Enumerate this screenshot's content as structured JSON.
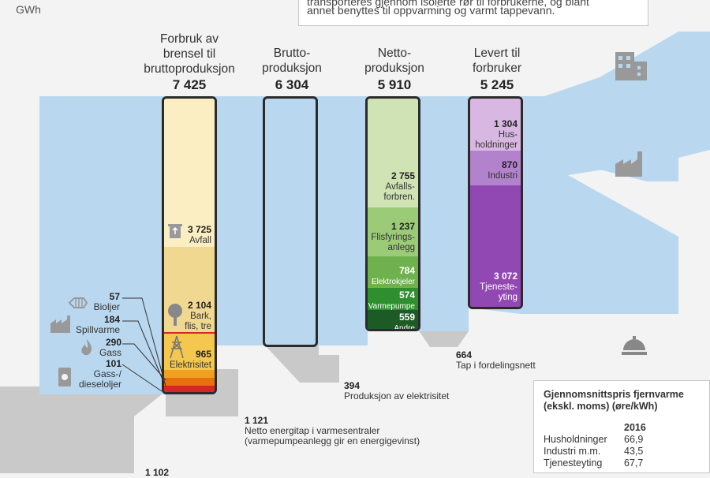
{
  "unit": "GWh",
  "note": {
    "line1": "transporteres gjennom isolerte rør til forbrukerne, og blant",
    "line2": "annet benyttes til oppvarming og varmt tappevann."
  },
  "stages": [
    {
      "header": [
        "Forbruk av",
        "brensel til",
        "bruttoproduksjon"
      ],
      "total": "7 425"
    },
    {
      "header": [
        "Brutto-",
        "produksjon"
      ],
      "total": "6 304"
    },
    {
      "header": [
        "Netto-",
        "produksjon"
      ],
      "total": "5 910"
    },
    {
      "header": [
        "Levert til",
        "forbruker"
      ],
      "total": "5 245"
    }
  ],
  "fuel_bar": {
    "segments": [
      {
        "value": "3 725",
        "label": [
          "Avfall"
        ],
        "color": "#f1d27a"
      },
      {
        "value": "2 104",
        "label": [
          "Bark,",
          "flis, tre"
        ],
        "color": "#f1d27a"
      },
      {
        "value": "965",
        "label": [
          "Elektrisitet"
        ],
        "color": "#f2c04a"
      },
      {
        "value": "290",
        "label": [],
        "color": "#f0a020"
      },
      {
        "value": "101",
        "label": [],
        "color": "#e8700f"
      }
    ]
  },
  "small_sources": [
    {
      "value": "57",
      "label": [
        "Bioljer"
      ],
      "icon": "fish-skeleton-icon"
    },
    {
      "value": "184",
      "label": [
        "Spillvarme"
      ],
      "icon": "factory-icon"
    },
    {
      "value": "290",
      "label": [
        "Gass"
      ],
      "icon": "flame-icon"
    },
    {
      "value": "101",
      "label": [
        "Gass-/",
        "dieseloljer"
      ],
      "icon": "oil-barrel-icon"
    }
  ],
  "net_bar": {
    "segments": [
      {
        "value": "2 755",
        "label": [
          "Avfalls-",
          "forbren."
        ],
        "color": "#cfe3b4"
      },
      {
        "value": "1 237",
        "label": [
          "Flisfyrings-",
          "anlegg"
        ],
        "color": "#9ccb78"
      },
      {
        "value": "784",
        "label": [
          "Elektrokjeler"
        ],
        "color": "#6fb14c"
      },
      {
        "value": "574",
        "label": [
          "Varmepumpe"
        ],
        "color": "#2f8f2f"
      },
      {
        "value": "559",
        "label": [
          "Andre"
        ],
        "color": "#1d5b26"
      }
    ]
  },
  "delivered_bar": {
    "segments": [
      {
        "value": "1 304",
        "label": [
          "Hus-",
          "holdninger"
        ],
        "color": "#d5b3de",
        "icon": "building-icon"
      },
      {
        "value": "870",
        "label": [
          "Industri"
        ],
        "color": "#b27fcb",
        "icon": "factory-icon"
      },
      {
        "value": "3 072",
        "label": [
          "Tjeneste-",
          "yting"
        ],
        "color": "#9248b2",
        "icon": "service-cloche-icon"
      }
    ]
  },
  "losses": [
    {
      "value": "664",
      "label": "Tap i fordelingsnett"
    },
    {
      "value": "394",
      "label": "Produksjon av elektrisitet"
    },
    {
      "value": "1 121",
      "label": "Netto energitap i varmesentraler",
      "sub": "(varmepumpeanlegg gir en energigevinst)"
    },
    {
      "value": "1 102",
      "label": ""
    }
  ],
  "price_box": {
    "title": [
      "Gjennomsnittspris fjernvarme",
      "(ekskl. moms) (øre/kWh)"
    ],
    "year": "2016",
    "rows": [
      {
        "label": "Husholdninger",
        "value": "66,9"
      },
      {
        "label": "Industri m.m.",
        "value": "43,5"
      },
      {
        "label": "Tjenesteyting",
        "value": "67,7"
      }
    ]
  },
  "colors": {
    "flow": "#b9d8ef",
    "loss": "#c8c8c8",
    "bar_border": "#2b2b2b"
  }
}
